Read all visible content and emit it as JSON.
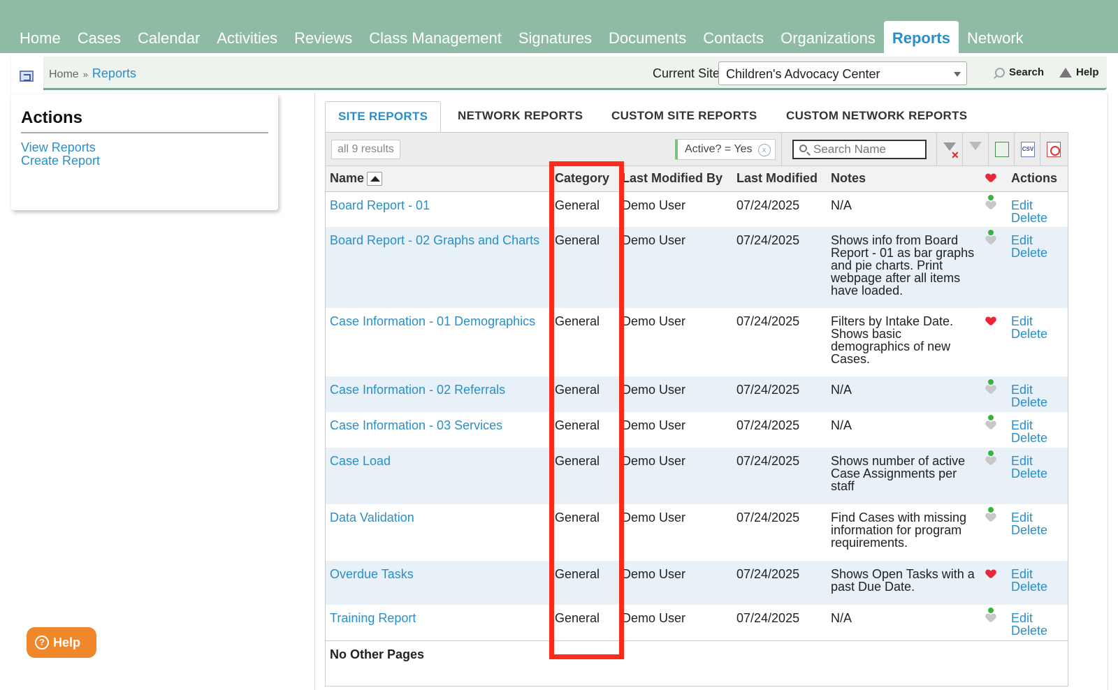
{
  "nav": {
    "tabs": [
      "Home",
      "Cases",
      "Calendar",
      "Activities",
      "Reviews",
      "Class Management",
      "Signatures",
      "Documents",
      "Contacts",
      "Organizations",
      "Reports",
      "Network"
    ],
    "active_index": 10
  },
  "breadcrumb": {
    "home": "Home",
    "sep": "»",
    "current": "Reports"
  },
  "header": {
    "current_site_label": "Current Site",
    "current_site_value": "Children's Advocacy Center",
    "search_label": "Search",
    "help_label": "Help"
  },
  "actions": {
    "title": "Actions",
    "links": [
      "View Reports",
      "Create Report"
    ]
  },
  "report_tabs": [
    "SITE REPORTS",
    "NETWORK REPORTS",
    "CUSTOM SITE REPORTS",
    "CUSTOM NETWORK REPORTS"
  ],
  "toolbar": {
    "results": "all 9 results",
    "filter_chip": "Active? = Yes",
    "filter_remove": "x",
    "search_placeholder": "Search Name",
    "csv_label": "CSV"
  },
  "table": {
    "columns": [
      "Name",
      "Category",
      "Last Modified By",
      "Last Modified",
      "Notes",
      "Actions"
    ],
    "rows": [
      {
        "name": "Board Report - 01",
        "category": "General",
        "by": "Demo User",
        "date": "07/24/2025",
        "notes": "N/A",
        "fav": false
      },
      {
        "name": "Board Report - 02 Graphs and Charts",
        "category": "General",
        "by": "Demo User",
        "date": "07/24/2025",
        "notes": "Shows info from Board Report - 01 as bar graphs and pie charts. Print webpage after all items have loaded.",
        "fav": false
      },
      {
        "name": "Case Information - 01 Demographics",
        "category": "General",
        "by": "Demo User",
        "date": "07/24/2025",
        "notes": "Filters by Intake Date. Shows basic demographics of new Cases.",
        "fav": true
      },
      {
        "name": "Case Information - 02 Referrals",
        "category": "General",
        "by": "Demo User",
        "date": "07/24/2025",
        "notes": "N/A",
        "fav": false
      },
      {
        "name": "Case Information - 03 Services",
        "category": "General",
        "by": "Demo User",
        "date": "07/24/2025",
        "notes": "N/A",
        "fav": false
      },
      {
        "name": "Case Load",
        "category": "General",
        "by": "Demo User",
        "date": "07/24/2025",
        "notes": "Shows number of active Case Assignments per staff",
        "fav": false
      },
      {
        "name": "Data Validation",
        "category": "General",
        "by": "Demo User",
        "date": "07/24/2025",
        "notes": "Find Cases with missing information for program requirements.",
        "fav": false
      },
      {
        "name": "Overdue Tasks",
        "category": "General",
        "by": "Demo User",
        "date": "07/24/2025",
        "notes": "Shows Open Tasks with a past Due Date.",
        "fav": true
      },
      {
        "name": "Training Report",
        "category": "General",
        "by": "Demo User",
        "date": "07/24/2025",
        "notes": "N/A",
        "fav": false
      }
    ],
    "row_action_edit": "Edit",
    "row_action_delete": "Delete",
    "footer": "No Other Pages"
  },
  "help_bubble": {
    "label": "Help",
    "glyph": "?"
  },
  "colors": {
    "nav_bg": "#8fbba5",
    "link": "#2a8fc8",
    "highlight": "#ff2a1a",
    "help": "#f0872a",
    "alt_row": "#e8f0f8"
  }
}
